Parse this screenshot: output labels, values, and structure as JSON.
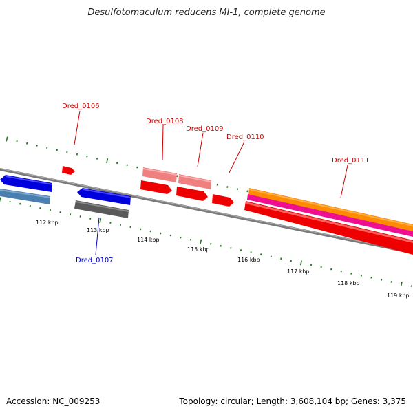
{
  "title": "Desulfotomaculum reducens MI-1, complete genome",
  "footer": {
    "accession": "Accession: NC_009253",
    "topology": "Topology: circular; Length: 3,608,104 bp; Genes: 3,375"
  },
  "colors": {
    "backbone": "#808080",
    "tick": "#1f7a1f",
    "label_red": "#cc0000",
    "label_blue": "#0000cc"
  },
  "ticks": [
    {
      "label": "112 kbp"
    },
    {
      "label": "113 kbp"
    },
    {
      "label": "114 kbp"
    },
    {
      "label": "115 kbp"
    },
    {
      "label": "116 kbp"
    },
    {
      "label": "117 kbp"
    },
    {
      "label": "118 kbp"
    },
    {
      "label": "119 kbp"
    }
  ],
  "genes": [
    {
      "name": "Dred_0106",
      "label_color": "#cc0000"
    },
    {
      "name": "Dred_0107",
      "label_color": "#0000cc"
    },
    {
      "name": "Dred_0108",
      "label_color": "#cc0000"
    },
    {
      "name": "Dred_0109",
      "label_color": "#cc0000"
    },
    {
      "name": "Dred_0110",
      "label_color": "#cc0000"
    },
    {
      "name": "Dred_0111",
      "label_color": "#cc0000"
    }
  ]
}
